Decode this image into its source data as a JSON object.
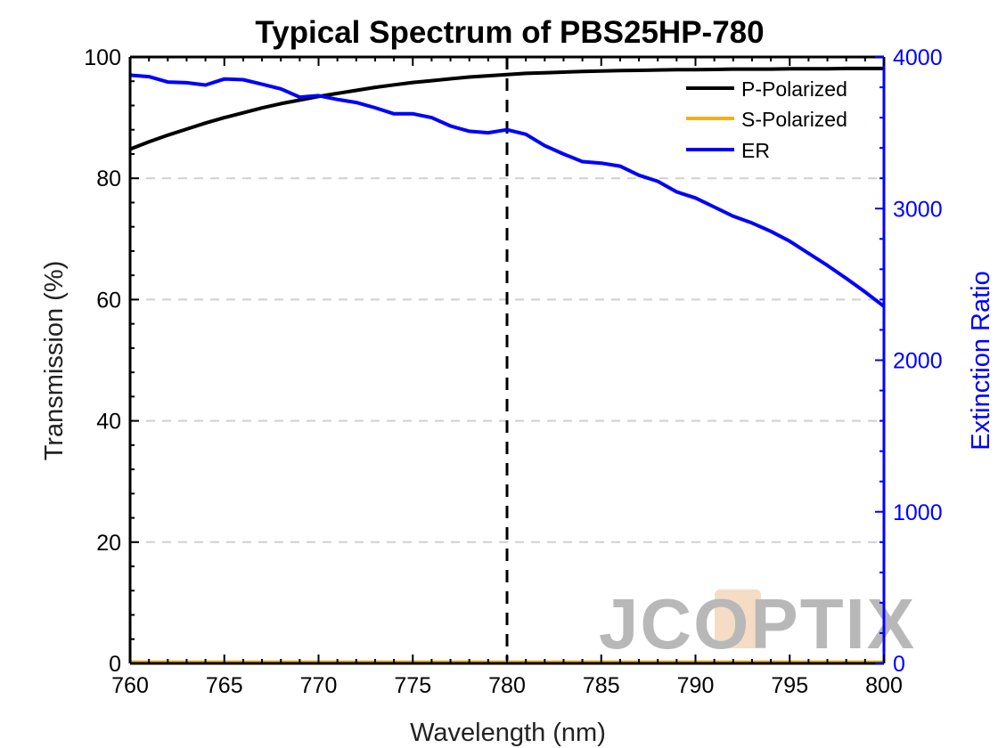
{
  "chart_data": {
    "type": "line",
    "title": "Typical Spectrum of PBS25HP-780",
    "xlabel": "Wavelength (nm)",
    "ylabel": "Transmission (%)",
    "y2label": "Extinction Ratio",
    "xlim": [
      760,
      800
    ],
    "ylim": [
      0,
      100
    ],
    "y2lim": [
      0,
      4000
    ],
    "xticks": [
      760,
      765,
      770,
      775,
      780,
      785,
      790,
      795,
      800
    ],
    "yticks": [
      0,
      20,
      40,
      60,
      80,
      100
    ],
    "y2ticks": [
      0,
      1000,
      2000,
      3000,
      4000
    ],
    "grid": "horizontal dashed",
    "legend_position": "top-right",
    "reference_line": {
      "x": 780,
      "style": "dashed"
    },
    "series": [
      {
        "name": "P-Polarized",
        "axis": "left",
        "color": "#000000",
        "x": [
          760,
          761,
          762,
          763,
          764,
          765,
          766,
          767,
          768,
          769,
          770,
          771,
          772,
          773,
          774,
          775,
          776,
          777,
          778,
          779,
          780,
          781,
          782,
          783,
          784,
          785,
          786,
          787,
          788,
          789,
          790,
          791,
          792,
          793,
          794,
          795,
          796,
          797,
          798,
          799,
          800
        ],
        "y": [
          84.8,
          86.0,
          87.1,
          88.1,
          89.1,
          90.0,
          90.8,
          91.6,
          92.3,
          92.9,
          93.5,
          94.0,
          94.5,
          95.0,
          95.4,
          95.8,
          96.1,
          96.4,
          96.7,
          96.9,
          97.1,
          97.3,
          97.4,
          97.5,
          97.6,
          97.7,
          97.75,
          97.8,
          97.85,
          97.9,
          97.9,
          97.95,
          98.0,
          98.0,
          98.0,
          98.05,
          98.05,
          98.05,
          98.1,
          98.1,
          98.1
        ]
      },
      {
        "name": "S-Polarized",
        "axis": "left",
        "color": "#EDB120",
        "x": [
          760,
          800
        ],
        "y": [
          0.2,
          0.2
        ]
      },
      {
        "name": "ER",
        "axis": "right",
        "color": "#0000FF",
        "x": [
          760,
          761,
          762,
          763,
          764,
          765,
          766,
          767,
          768,
          769,
          770,
          771,
          772,
          773,
          774,
          775,
          776,
          777,
          778,
          779,
          780,
          781,
          782,
          783,
          784,
          785,
          786,
          787,
          788,
          789,
          790,
          791,
          792,
          793,
          794,
          795,
          796,
          797,
          798,
          799,
          800
        ],
        "y": [
          3880,
          3870,
          3835,
          3830,
          3815,
          3855,
          3850,
          3820,
          3790,
          3735,
          3745,
          3720,
          3700,
          3665,
          3625,
          3625,
          3600,
          3545,
          3510,
          3500,
          3520,
          3490,
          3415,
          3360,
          3310,
          3300,
          3280,
          3220,
          3180,
          3110,
          3070,
          3010,
          2950,
          2905,
          2850,
          2785,
          2705,
          2625,
          2540,
          2450,
          2355
        ]
      }
    ]
  },
  "watermark": {
    "text": "JCOPTIX",
    "color": "#b8b8b8",
    "accent_color": "#f5dcc4"
  }
}
